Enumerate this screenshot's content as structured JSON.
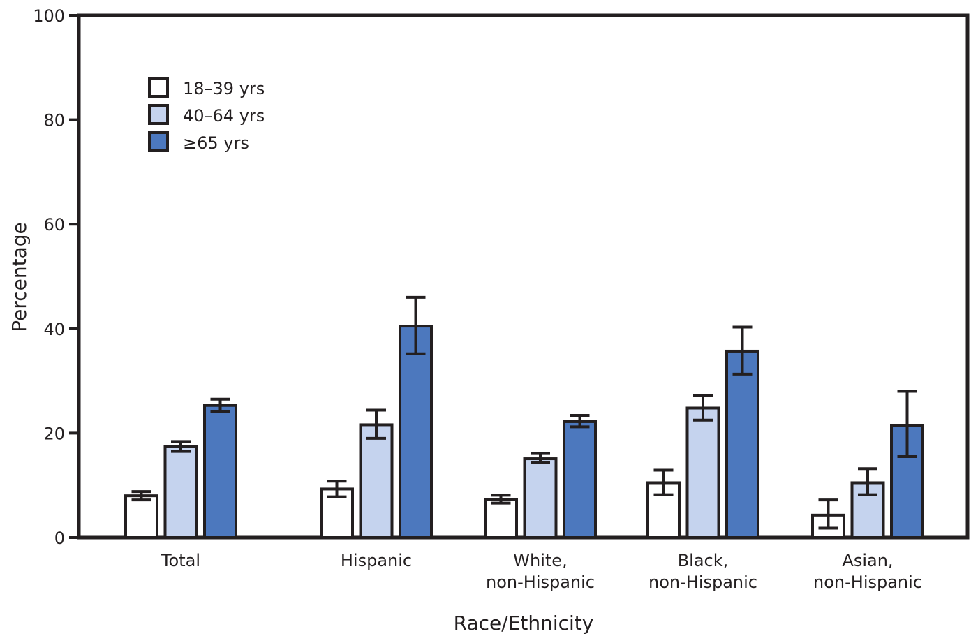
{
  "chart_data": {
    "type": "bar",
    "title": "",
    "xlabel": "Race/Ethnicity",
    "ylabel": "Percentage",
    "ylim": [
      0,
      100
    ],
    "yticks": [
      "0",
      "20",
      "40",
      "60",
      "80",
      "100"
    ],
    "grid": false,
    "legend_position": "top-left",
    "categories": [
      [
        "Total"
      ],
      [
        "Hispanic"
      ],
      [
        "White,",
        "non-Hispanic"
      ],
      [
        "Black,",
        "non-Hispanic"
      ],
      [
        "Asian,",
        "non-Hispanic"
      ]
    ],
    "series": [
      {
        "name": "18–39 yrs",
        "color": "#ffffff",
        "values": [
          8.0,
          9.3,
          7.3,
          10.5,
          4.3
        ],
        "ci_low": [
          7.2,
          7.8,
          6.6,
          8.2,
          1.8
        ],
        "ci_high": [
          8.8,
          10.8,
          8.1,
          12.9,
          7.2
        ]
      },
      {
        "name": "40–64 yrs",
        "color": "#c5d3ee",
        "values": [
          17.4,
          21.6,
          15.1,
          24.8,
          10.5
        ],
        "ci_low": [
          16.5,
          19.0,
          14.3,
          22.5,
          8.2
        ],
        "ci_high": [
          18.4,
          24.4,
          16.1,
          27.2,
          13.2
        ]
      },
      {
        "name": "≥65 yrs",
        "color": "#4c78be",
        "values": [
          25.3,
          40.5,
          22.2,
          35.7,
          21.5
        ],
        "ci_low": [
          24.2,
          35.2,
          21.2,
          31.3,
          15.5
        ],
        "ci_high": [
          26.5,
          46.0,
          23.4,
          40.3,
          28.0
        ]
      }
    ]
  }
}
